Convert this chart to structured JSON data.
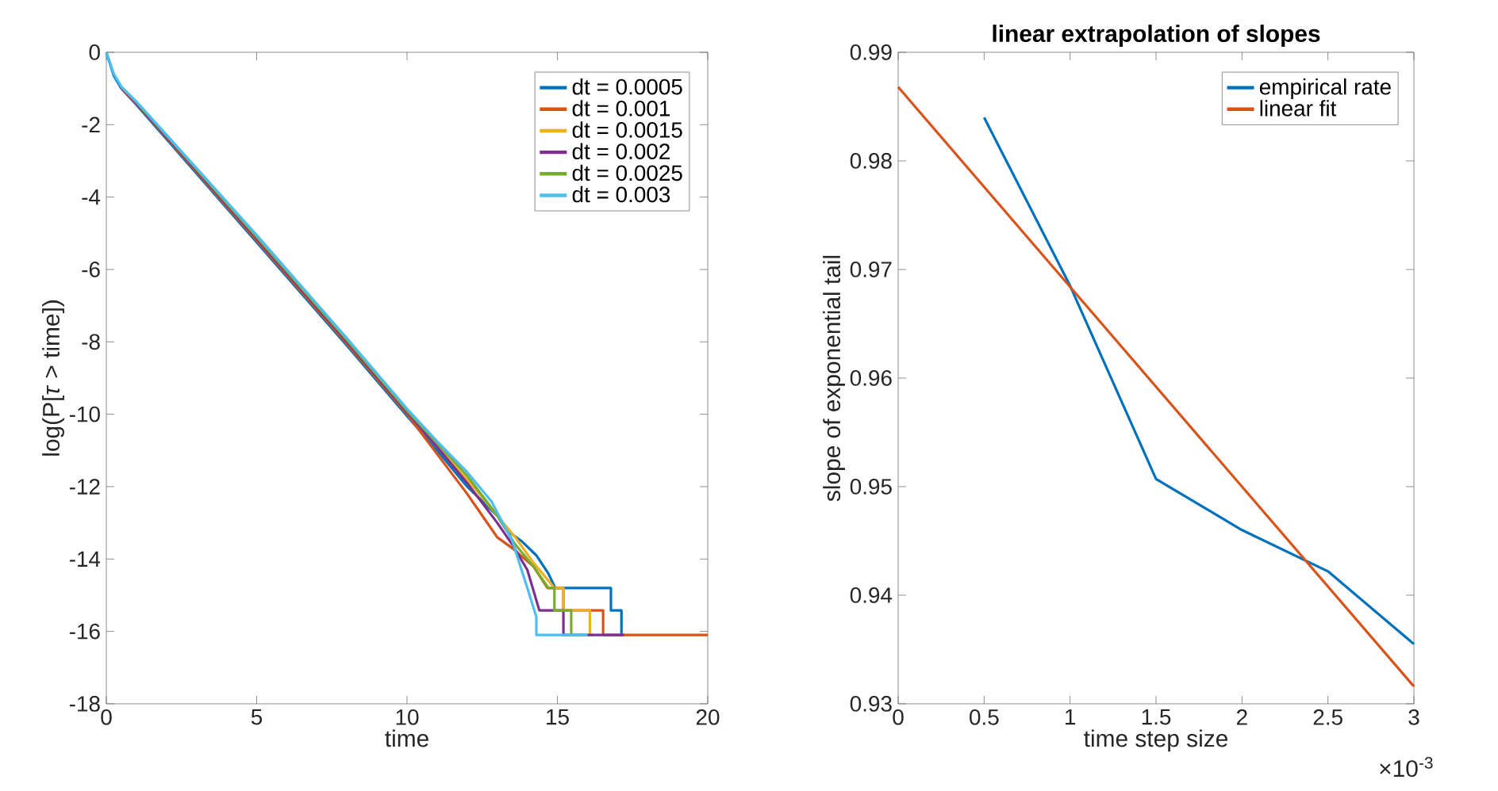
{
  "chart_data": [
    {
      "type": "line",
      "xlabel": "time",
      "ylabel": "log(P[*τ* > time])",
      "xlim": [
        0,
        20
      ],
      "ylim": [
        -18,
        0
      ],
      "xticks": [
        0,
        5,
        10,
        15,
        20
      ],
      "yticks": [
        -18,
        -16,
        -14,
        -12,
        -10,
        -8,
        -6,
        -4,
        -2,
        0
      ],
      "legend": "top right",
      "grid": false,
      "series": [
        {
          "name": "dt = 0.0005",
          "color": "#0072bd",
          "x": [
            0,
            0.25,
            0.5,
            1,
            2,
            5,
            8,
            10,
            11,
            12,
            13,
            13.3,
            13.8,
            14.3,
            14.7,
            14.93,
            16.78,
            16.78,
            17.13,
            17.13,
            17.24
          ],
          "values": [
            0,
            -0.65,
            -1.0,
            -1.45,
            -2.4,
            -5.25,
            -8.1,
            -10.05,
            -11.0,
            -12.0,
            -12.8,
            -13.2,
            -13.5,
            -13.9,
            -14.4,
            -14.8,
            -14.8,
            -15.42,
            -15.42,
            -16.1,
            -16.1
          ]
        },
        {
          "name": "dt = 0.001",
          "color": "#d95319",
          "x": [
            0.5,
            1,
            2,
            5,
            8,
            10,
            11,
            12,
            12.5,
            13,
            13.5,
            14.2,
            14.67,
            15.2,
            15.2,
            16.52,
            16.52,
            20
          ],
          "values": [
            -0.98,
            -1.42,
            -2.36,
            -5.2,
            -8.05,
            -10.0,
            -11.1,
            -12.2,
            -12.8,
            -13.4,
            -13.7,
            -14.2,
            -14.8,
            -14.8,
            -15.42,
            -15.42,
            -16.1,
            -16.1
          ]
        },
        {
          "name": "dt = 0.0015",
          "color": "#edb120",
          "x": [
            10,
            11,
            12,
            13,
            13.6,
            14.2,
            14.9,
            15.2,
            15.2,
            16.08,
            16.08,
            16.2
          ],
          "values": [
            -9.95,
            -10.9,
            -11.8,
            -12.8,
            -13.4,
            -14.1,
            -14.8,
            -14.8,
            -15.42,
            -15.42,
            -16.1,
            -16.1
          ]
        },
        {
          "name": "dt = 0.002",
          "color": "#7e2f8e",
          "x": [
            0.5,
            1,
            2,
            5,
            8,
            10,
            11,
            12,
            13,
            13.5,
            14.0,
            14.4,
            15.2,
            15.2,
            17.2
          ],
          "values": [
            -0.97,
            -1.4,
            -2.33,
            -5.15,
            -8.0,
            -9.95,
            -10.9,
            -11.9,
            -13.0,
            -13.6,
            -14.3,
            -15.42,
            -15.42,
            -16.1,
            -16.1
          ]
        },
        {
          "name": "dt = 0.0025",
          "color": "#77ac30",
          "x": [
            0.5,
            1,
            2,
            5,
            8,
            10,
            11,
            12,
            13,
            13.6,
            14.2,
            14.7,
            14.9,
            14.9,
            15.46,
            15.46,
            15.9
          ],
          "values": [
            -0.96,
            -1.38,
            -2.3,
            -5.1,
            -7.95,
            -9.9,
            -10.8,
            -11.7,
            -12.8,
            -13.6,
            -14.2,
            -14.8,
            -14.8,
            -15.42,
            -15.42,
            -16.1,
            -16.1
          ]
        },
        {
          "name": "dt = 0.003",
          "color": "#4dbeee",
          "x": [
            0,
            0.25,
            0.5,
            1,
            2,
            5,
            8,
            10,
            11,
            12,
            12.8,
            13.5,
            14.0,
            14.3,
            14.3,
            16.0
          ],
          "values": [
            0,
            -0.6,
            -0.95,
            -1.36,
            -2.28,
            -5.05,
            -7.9,
            -9.85,
            -10.75,
            -11.6,
            -12.4,
            -13.5,
            -14.8,
            -15.6,
            -16.1,
            -16.1
          ]
        }
      ]
    },
    {
      "type": "line",
      "title": "**linear extrapolation of slopes**",
      "xlabel": "time step size",
      "ylabel": "slope of exponential tail",
      "annotations": [
        "×10$^{-3}$"
      ],
      "xlim": [
        0,
        3
      ],
      "ylim": [
        0.93,
        0.99
      ],
      "xticks": [
        0,
        0.5,
        1,
        1.5,
        2,
        2.5,
        3
      ],
      "yticks": [
        0.93,
        0.94,
        0.95,
        0.96,
        0.97,
        0.98,
        0.99
      ],
      "legend": "top right",
      "grid": false,
      "series": [
        {
          "name": "empirical rate",
          "color": "#0072bd",
          "x": [
            0.5,
            1,
            1.5,
            2,
            2.5,
            3
          ],
          "values": [
            0.984,
            0.9685,
            0.9507,
            0.946,
            0.9422,
            0.9355
          ]
        },
        {
          "name": "linear fit",
          "color": "#d95319",
          "x": [
            0,
            3
          ],
          "values": [
            0.9868,
            0.9316
          ]
        }
      ]
    }
  ]
}
